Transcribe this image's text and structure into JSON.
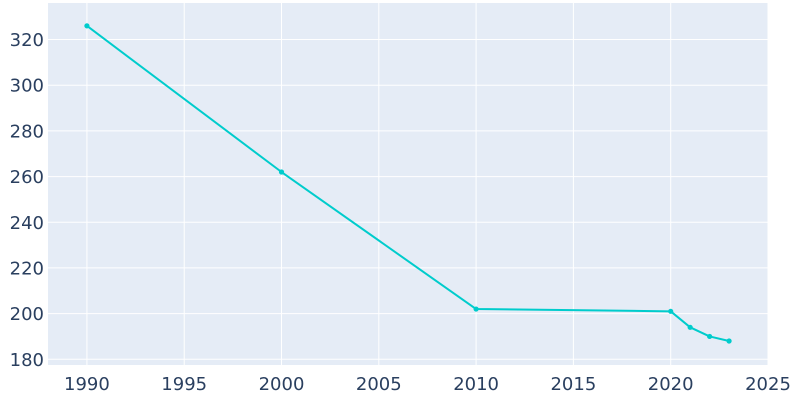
{
  "chart_data": {
    "type": "line",
    "title": "",
    "xlabel": "",
    "ylabel": "",
    "x": [
      1990,
      2000,
      2010,
      2020,
      2021,
      2022,
      2023
    ],
    "series": [
      {
        "values": [
          326,
          262,
          202,
          201,
          194,
          190,
          188
        ]
      }
    ],
    "xlim": [
      1988,
      2025
    ],
    "ylim": [
      177.5,
      336
    ],
    "x_ticks": [
      "1990",
      "1995",
      "2000",
      "2005",
      "2010",
      "2015",
      "2020",
      "2025"
    ],
    "y_ticks": [
      "180",
      "200",
      "220",
      "240",
      "260",
      "280",
      "300",
      "320"
    ],
    "grid": true,
    "legend": "none",
    "colors": {
      "line": "#00cccc",
      "plot_bg": "#e5ecf6",
      "grid": "#ffffff",
      "text": "#2a3f5f"
    }
  }
}
